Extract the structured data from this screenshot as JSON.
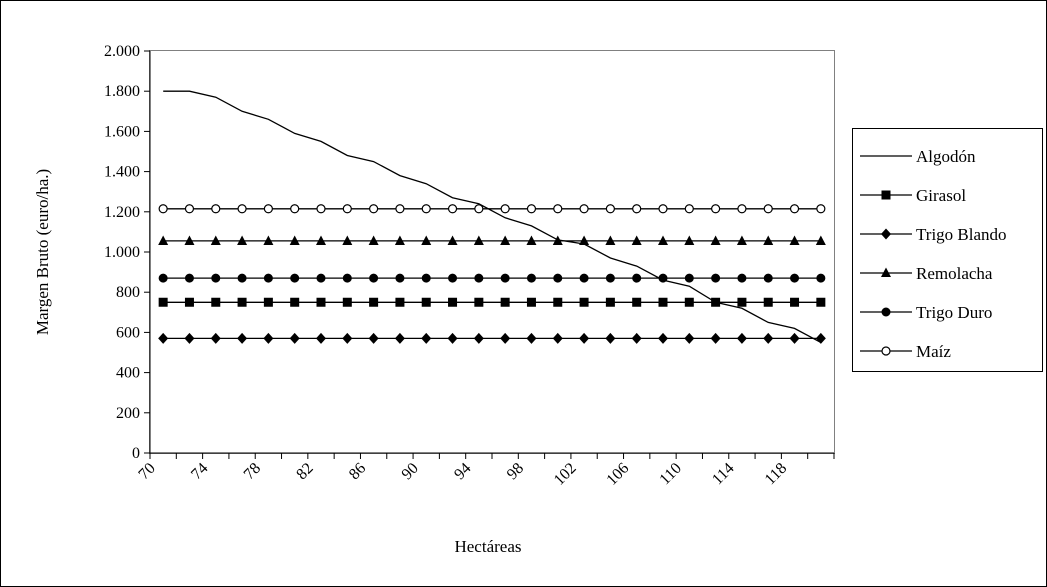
{
  "chart_data": {
    "type": "line",
    "title": "",
    "xlabel": "Hectáreas",
    "ylabel": "Margen Bruto (euro/ha.)",
    "x": [
      71,
      73,
      75,
      77,
      79,
      81,
      83,
      85,
      87,
      89,
      91,
      93,
      95,
      97,
      99,
      101,
      103,
      105,
      107,
      109,
      111,
      113,
      115,
      117,
      119,
      121
    ],
    "x_tick_labels": [
      "70",
      "74",
      "78",
      "82",
      "86",
      "90",
      "94",
      "98",
      "102",
      "106",
      "110",
      "114",
      "118"
    ],
    "x_tick_values": [
      70,
      74,
      78,
      82,
      86,
      90,
      94,
      98,
      102,
      106,
      110,
      114,
      118
    ],
    "xlim": [
      70,
      122
    ],
    "ylim": [
      0,
      2000
    ],
    "y_ticks": [
      0,
      200,
      400,
      600,
      800,
      1000,
      1200,
      1400,
      1600,
      1800,
      2000
    ],
    "y_tick_labels": [
      "0",
      "200",
      "400",
      "600",
      "800",
      "1.000",
      "1.200",
      "1.400",
      "1.600",
      "1.800",
      "2.000"
    ],
    "grid": false,
    "legend_position": "right",
    "series": [
      {
        "name": "Algodón",
        "marker": "none",
        "values": [
          1800,
          1800,
          1770,
          1700,
          1660,
          1590,
          1550,
          1480,
          1450,
          1380,
          1340,
          1270,
          1240,
          1170,
          1130,
          1060,
          1040,
          970,
          930,
          860,
          830,
          750,
          720,
          650,
          620,
          550
        ]
      },
      {
        "name": "Girasol",
        "marker": "square",
        "values": [
          750,
          750,
          750,
          750,
          750,
          750,
          750,
          750,
          750,
          750,
          750,
          750,
          750,
          750,
          750,
          750,
          750,
          750,
          750,
          750,
          750,
          750,
          750,
          750,
          750,
          750
        ]
      },
      {
        "name": "Trigo Blando",
        "marker": "diamond",
        "values": [
          570,
          570,
          570,
          570,
          570,
          570,
          570,
          570,
          570,
          570,
          570,
          570,
          570,
          570,
          570,
          570,
          570,
          570,
          570,
          570,
          570,
          570,
          570,
          570,
          570,
          570
        ]
      },
      {
        "name": "Remolacha",
        "marker": "triangle",
        "values": [
          1055,
          1055,
          1055,
          1055,
          1055,
          1055,
          1055,
          1055,
          1055,
          1055,
          1055,
          1055,
          1055,
          1055,
          1055,
          1055,
          1055,
          1055,
          1055,
          1055,
          1055,
          1055,
          1055,
          1055,
          1055,
          1055
        ]
      },
      {
        "name": "Trigo Duro",
        "marker": "circle",
        "values": [
          870,
          870,
          870,
          870,
          870,
          870,
          870,
          870,
          870,
          870,
          870,
          870,
          870,
          870,
          870,
          870,
          870,
          870,
          870,
          870,
          870,
          870,
          870,
          870,
          870,
          870
        ]
      },
      {
        "name": "Maíz",
        "marker": "open-circle",
        "values": [
          1215,
          1215,
          1215,
          1215,
          1215,
          1215,
          1215,
          1215,
          1215,
          1215,
          1215,
          1215,
          1215,
          1215,
          1215,
          1215,
          1215,
          1215,
          1215,
          1215,
          1215,
          1215,
          1215,
          1215,
          1215,
          1215
        ]
      }
    ]
  }
}
